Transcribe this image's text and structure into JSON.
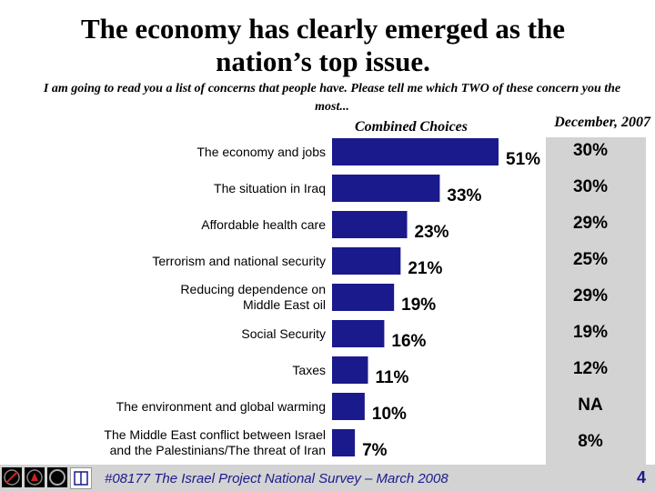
{
  "title_line1": "The economy has clearly emerged as the",
  "title_line2": "nation’s top issue.",
  "question": "I am going to read you a list of concerns that people have. Please tell me which TWO of these concern you the most...",
  "subhead_combined": "Combined Choices",
  "subhead_december": "December, 2007",
  "footer": "#08177 The Israel Project National Survey – March 2008",
  "page_number": "4",
  "colors": {
    "bar": "#1a1a8c",
    "panel": "#d3d3d3",
    "label_blue": "#1a1a8c"
  },
  "chart_data": {
    "type": "bar",
    "orientation": "horizontal",
    "title": "Combined Choices",
    "categories": [
      "The economy and jobs",
      "The situation in Iraq",
      "Affordable health care",
      "Terrorism and national security",
      "Reducing dependence on Middle East oil",
      "Social Security",
      "Taxes",
      "The environment and global warming",
      "The Middle East conflict between Israel and the Palestinians/The threat of Iran"
    ],
    "category_lines": [
      [
        "The economy and jobs"
      ],
      [
        "The situation in Iraq"
      ],
      [
        "Affordable health care"
      ],
      [
        "Terrorism and national security"
      ],
      [
        "Reducing dependence on",
        "Middle East oil"
      ],
      [
        "Social Security"
      ],
      [
        "Taxes"
      ],
      [
        "The environment and global warming"
      ],
      [
        "The Middle East conflict between Israel",
        "and the Palestinians/The threat of Iran"
      ]
    ],
    "series": [
      {
        "name": "Combined Choices",
        "values": [
          51,
          33,
          23,
          21,
          19,
          16,
          11,
          10,
          7
        ],
        "labels": [
          "51%",
          "33%",
          "23%",
          "21%",
          "19%",
          "16%",
          "11%",
          "10%",
          "7%"
        ]
      },
      {
        "name": "December, 2007",
        "labels": [
          "30%",
          "30%",
          "29%",
          "25%",
          "29%",
          "19%",
          "12%",
          "NA",
          "8%"
        ]
      }
    ],
    "xlim": [
      0,
      51
    ]
  }
}
